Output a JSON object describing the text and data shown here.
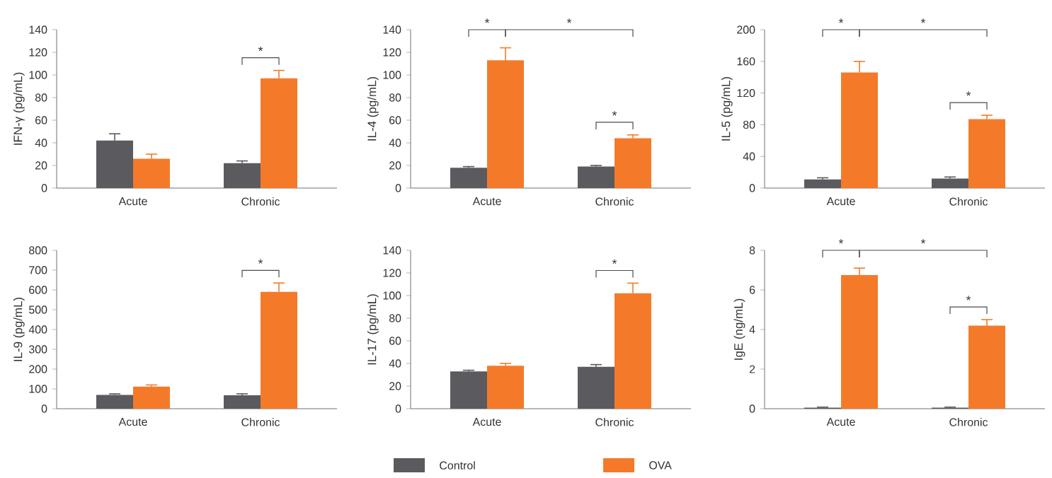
{
  "chart_data": [
    {
      "type": "bar",
      "categories": [
        "Acute",
        "Chronic"
      ],
      "ylabel": "IFN-γ (pg/mL)",
      "ylim": [
        0,
        140
      ],
      "yticks": [
        0,
        20,
        40,
        60,
        80,
        100,
        120,
        140
      ],
      "series": [
        {
          "color": "#5a5a5f",
          "values": [
            42,
            22
          ],
          "errors": [
            6,
            2
          ]
        },
        {
          "color": "#f47a2a",
          "values": [
            26,
            97
          ],
          "errors": [
            4,
            7
          ]
        }
      ],
      "annotations": [
        "*"
      ]
    },
    {
      "type": "bar",
      "categories": [
        "Acute",
        "Chronic"
      ],
      "ylabel": "IL-4 (pg/mL)",
      "ylim": [
        0,
        140
      ],
      "yticks": [
        0,
        20,
        40,
        60,
        80,
        100,
        120,
        140
      ],
      "series": [
        {
          "color": "#5a5a5f",
          "values": [
            18,
            19
          ],
          "errors": [
            1,
            1
          ]
        },
        {
          "color": "#f47a2a",
          "values": [
            113,
            44
          ],
          "errors": [
            11,
            3
          ]
        }
      ],
      "annotations": [
        "*",
        "*",
        "*"
      ]
    },
    {
      "type": "bar",
      "categories": [
        "Acute",
        "Chronic"
      ],
      "ylabel": "IL-5 (pg/mL)",
      "ylim": [
        0,
        200
      ],
      "yticks": [
        0,
        40,
        80,
        120,
        160,
        200
      ],
      "series": [
        {
          "color": "#5a5a5f",
          "values": [
            11,
            12
          ],
          "errors": [
            2,
            2
          ]
        },
        {
          "color": "#f47a2a",
          "values": [
            146,
            87
          ],
          "errors": [
            14,
            5
          ]
        }
      ],
      "annotations": [
        "*",
        "*",
        "*"
      ]
    },
    {
      "type": "bar",
      "categories": [
        "Acute",
        "Chronic"
      ],
      "ylabel": "IL-9 (pg/mL)",
      "ylim": [
        0,
        800
      ],
      "yticks": [
        0,
        100,
        200,
        300,
        400,
        500,
        600,
        700,
        800
      ],
      "series": [
        {
          "color": "#5a5a5f",
          "values": [
            70,
            68
          ],
          "errors": [
            5,
            7
          ]
        },
        {
          "color": "#f47a2a",
          "values": [
            112,
            590
          ],
          "errors": [
            8,
            45
          ]
        }
      ],
      "annotations": [
        "*"
      ]
    },
    {
      "type": "bar",
      "categories": [
        "Acute",
        "Chronic"
      ],
      "ylabel": "IL-17 (pg/mL)",
      "ylim": [
        0,
        140
      ],
      "yticks": [
        0,
        20,
        40,
        60,
        80,
        100,
        120,
        140
      ],
      "legend": "bottom",
      "series": [
        {
          "name": "Control",
          "color": "#5a5a5f",
          "values": [
            33,
            37
          ],
          "errors": [
            1,
            2
          ]
        },
        {
          "name": "OVA",
          "color": "#f47a2a",
          "values": [
            38,
            102
          ],
          "errors": [
            2,
            9
          ]
        }
      ],
      "annotations": [
        "*"
      ]
    },
    {
      "type": "bar",
      "categories": [
        "Acute",
        "Chronic"
      ],
      "ylabel": "IgE (ng/mL)",
      "ylim": [
        0,
        8
      ],
      "yticks": [
        0,
        2,
        4,
        6,
        8
      ],
      "series": [
        {
          "color": "#5a5a5f",
          "values": [
            0.05,
            0.05
          ],
          "errors": [
            0.03,
            0.03
          ]
        },
        {
          "color": "#f47a2a",
          "values": [
            6.75,
            4.2
          ],
          "errors": [
            0.35,
            0.3
          ]
        }
      ],
      "annotations": [
        "*",
        "*",
        "*"
      ]
    }
  ]
}
